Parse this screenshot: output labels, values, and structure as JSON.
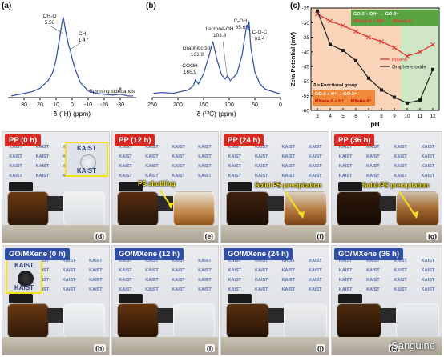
{
  "panels": {
    "a": "(a)",
    "b": "(b)",
    "c": "(c)",
    "d": "(d)",
    "e": "(e)",
    "f": "(f)",
    "g": "(g)",
    "h": "(h)",
    "i": "(i)",
    "j": "(j)",
    "k": "(k)"
  },
  "chart_data": [
    {
      "panel": "a",
      "type": "line",
      "xlabel": "δ (¹H) (ppm)",
      "ylabel": "",
      "xlim": [
        40,
        -40
      ],
      "xticks": [
        30,
        20,
        10,
        0,
        -10,
        -20,
        -30
      ],
      "peaks": [
        {
          "label": "CH₂O",
          "value": "5.56",
          "x": 5.56
        },
        {
          "label": "CH₂",
          "value": "1.47",
          "x": 1.47
        }
      ],
      "legend": "* Spinning sidebands",
      "star_positions": [
        -30
      ],
      "x": [
        38,
        30,
        25,
        20,
        15,
        12,
        10,
        8,
        6,
        5.56,
        4,
        2,
        1.47,
        0,
        -2,
        -5,
        -10,
        -15,
        -20,
        -25,
        -30,
        -35,
        -38
      ],
      "y": [
        0.02,
        0.05,
        0.07,
        0.11,
        0.2,
        0.3,
        0.45,
        0.68,
        0.92,
        0.95,
        0.78,
        0.6,
        0.58,
        0.46,
        0.33,
        0.18,
        0.08,
        0.05,
        0.04,
        0.03,
        0.04,
        0.02,
        0.02
      ]
    },
    {
      "panel": "b",
      "type": "line",
      "xlabel": "δ (¹³C) (ppm)",
      "ylabel": "",
      "xlim": [
        250,
        0
      ],
      "xticks": [
        250,
        200,
        150,
        100,
        50,
        0
      ],
      "peaks": [
        {
          "label": "COOH",
          "value": "165.9",
          "x": 165.9
        },
        {
          "label": "Graphitic sp²",
          "value": "131.9",
          "x": 131.9
        },
        {
          "label": "Lactone-OH",
          "value": "103.3",
          "x": 103.3
        },
        {
          "label": "C-OH",
          "value": "65.6",
          "x": 65.6
        },
        {
          "label": "C-O-C",
          "value": "61.4",
          "x": 61.4
        }
      ],
      "x": [
        248,
        230,
        210,
        195,
        180,
        170,
        165.9,
        160,
        150,
        140,
        131.9,
        124,
        115,
        108,
        103.3,
        98,
        85,
        75,
        70,
        65.6,
        63,
        61.4,
        58,
        50,
        40,
        30,
        20,
        10,
        2
      ],
      "y": [
        0.05,
        0.06,
        0.05,
        0.07,
        0.09,
        0.14,
        0.21,
        0.16,
        0.28,
        0.48,
        0.66,
        0.45,
        0.27,
        0.22,
        0.26,
        0.2,
        0.28,
        0.5,
        0.7,
        0.86,
        0.8,
        0.9,
        0.6,
        0.3,
        0.16,
        0.1,
        0.08,
        0.06,
        0.05
      ]
    },
    {
      "panel": "c",
      "type": "line",
      "xlabel": "pH",
      "ylabel": "Zeta Potential (mV)",
      "xlim": [
        2.5,
        12.5
      ],
      "ylim": [
        -60,
        -25
      ],
      "xticks": [
        3,
        4,
        5,
        6,
        7,
        8,
        9,
        10,
        11,
        12
      ],
      "yticks": [
        -25,
        -30,
        -35,
        -40,
        -45,
        -50,
        -55,
        -60
      ],
      "series": [
        {
          "name": "MXene",
          "color": "#e0312b",
          "x": [
            3,
            4,
            5,
            6,
            7,
            8,
            9,
            10,
            11,
            12
          ],
          "y": [
            -27,
            -29.5,
            -31,
            -33,
            -35,
            -36.5,
            -38.5,
            -41.5,
            -40,
            -37.5
          ]
        },
        {
          "name": "Graphene oxide",
          "color": "#1a1a1a",
          "x": [
            3,
            4,
            5,
            6,
            7,
            8,
            9,
            10,
            11,
            12
          ],
          "y": [
            -26,
            -37.5,
            -39.5,
            -43,
            -49,
            -53,
            -55.5,
            -57.5,
            -56.5,
            -46
          ]
        }
      ],
      "regions": [
        {
          "from": 2.5,
          "to": 9.5,
          "color": "#fad4b8"
        },
        {
          "from": 9.5,
          "to": 12.5,
          "color": "#cfe7c5"
        }
      ],
      "annotations": {
        "top_line1": "GO-δ + OH⁻ → GO-δ⁻",
        "top_line2": "MXene-δ + OH⁻ → MXene-δ⁻",
        "bottom_title": "δ = Functional group",
        "bottom_line1": "GO-δ + H⁺ → GO-δ⁺",
        "bottom_line2": "MXene-δ + H⁺ → MXene-δ⁺"
      }
    }
  ],
  "photos": {
    "d": {
      "badge": "PP (0 h)",
      "label": "(d)"
    },
    "e": {
      "badge": "PP (12 h)",
      "label": "(e)",
      "annotation": "PS shuttling"
    },
    "f": {
      "badge": "PP (24 h)",
      "label": "(f)",
      "annotation": "Solid-PS precipitation"
    },
    "g": {
      "badge": "PP (36 h)",
      "label": "(g)",
      "annotation": "Solid-PS precipitation"
    },
    "h": {
      "badge": "GO/MXene (0 h)",
      "label": "(h)"
    },
    "i": {
      "badge": "GO/MXene (12 h)",
      "label": "(i)"
    },
    "j": {
      "badge": "GO/MXene (24 h)",
      "label": "(j)"
    },
    "k": {
      "badge": "GO/MXene (36 h)",
      "label": "(k)"
    }
  },
  "backdrop_text": "KAIST",
  "watermark": "Sanguine",
  "colors": {
    "spectrum": "#3a56b0",
    "badge_red": "#d82a23",
    "badge_blue": "#2f4fa6",
    "highlight_yellow": "#f2e01c",
    "electrolyte_dark": "#2a1608",
    "electrolyte_amber": "#8a4a12",
    "electrolyte_clear": "#e7eaec"
  }
}
